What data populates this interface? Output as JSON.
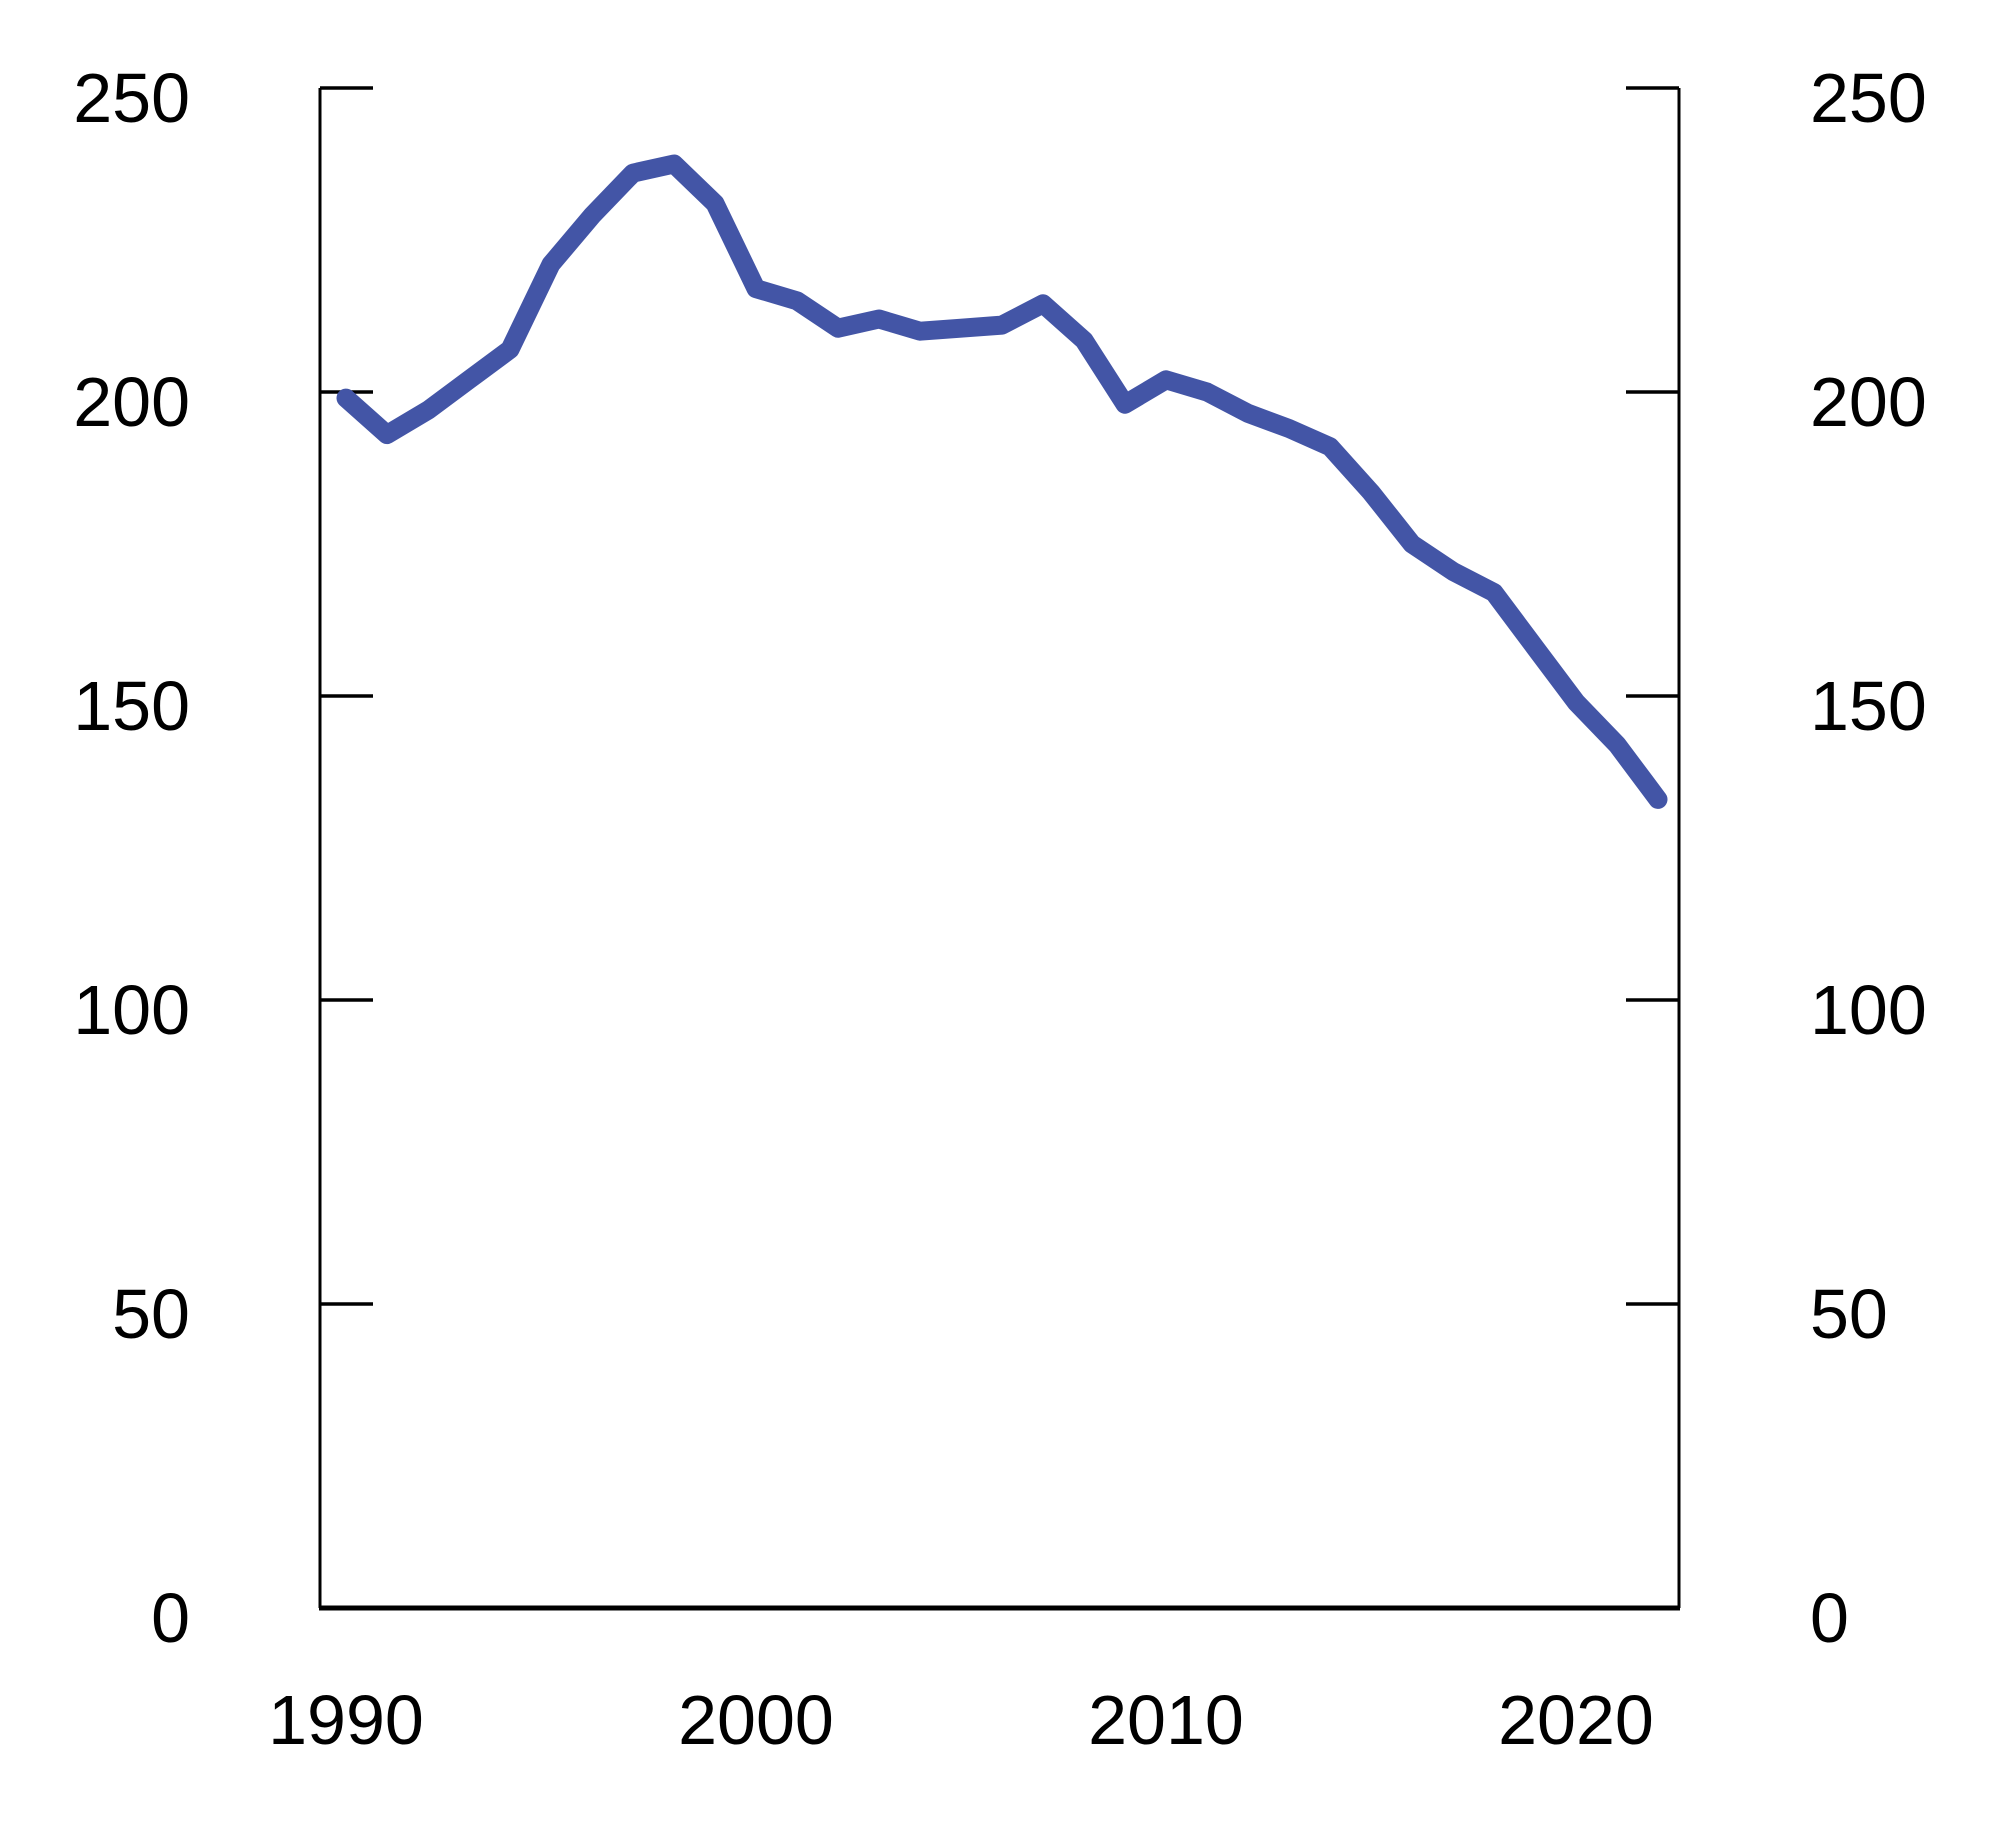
{
  "chart_data": {
    "type": "line",
    "title": "",
    "xlabel": "",
    "ylabel": "",
    "grid": "off",
    "legend": "none",
    "dual_y_axis": true,
    "line_color": "#4355A6",
    "axis_color": "#000000",
    "ylim": [
      0,
      250
    ],
    "xlim_years": [
      1990,
      2022
    ],
    "y_ticks": [
      0,
      50,
      100,
      150,
      200,
      250
    ],
    "y_tick_labels_left": [
      "0",
      "50",
      "100",
      "150",
      "200",
      "250"
    ],
    "y_tick_labels_right": [
      "0",
      "50",
      "100",
      "150",
      "200",
      "250"
    ],
    "x_tick_years": [
      1990,
      2000,
      2010,
      2020
    ],
    "x_tick_labels": [
      "1990",
      "2000",
      "2010",
      "2020"
    ],
    "x": [
      1990,
      1991,
      1992,
      1993,
      1994,
      1995,
      1996,
      1997,
      1998,
      1999,
      2000,
      2001,
      2002,
      2003,
      2004,
      2005,
      2006,
      2007,
      2008,
      2009,
      2010,
      2011,
      2012,
      2013,
      2014,
      2015,
      2016,
      2017,
      2018,
      2019,
      2020,
      2021,
      2022
    ],
    "series": [
      {
        "name": "",
        "values": [
          199,
          193,
          197,
          202,
          207,
          221,
          229,
          236,
          237.5,
          231,
          217,
          215,
          210.5,
          212,
          210,
          210.5,
          211,
          214.5,
          208.5,
          198,
          202,
          200,
          196.5,
          194,
          191,
          183.5,
          175,
          170.5,
          167,
          158,
          149,
          142,
          133
        ]
      }
    ]
  }
}
